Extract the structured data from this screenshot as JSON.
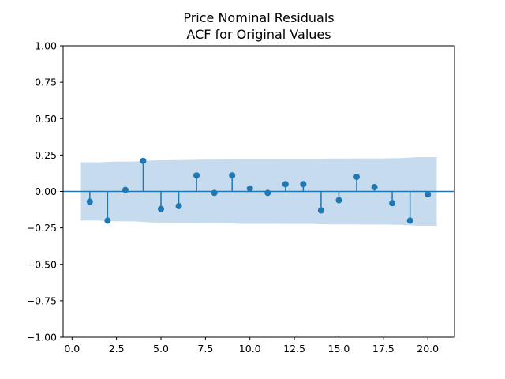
{
  "chart_data": {
    "type": "stem",
    "title_line1": "Price Nominal Residuals",
    "title_line2": "ACF for Original Values",
    "xlabel": "",
    "ylabel": "",
    "xlim": [
      -0.5,
      21.5
    ],
    "ylim": [
      -1.0,
      1.0
    ],
    "x_ticks": [
      0.0,
      2.5,
      5.0,
      7.5,
      10.0,
      12.5,
      15.0,
      17.5,
      20.0
    ],
    "x_tick_labels": [
      "0.0",
      "2.5",
      "5.0",
      "7.5",
      "10.0",
      "12.5",
      "15.0",
      "17.5",
      "20.0"
    ],
    "y_ticks": [
      1.0,
      0.75,
      0.5,
      0.25,
      0.0,
      -0.25,
      -0.5,
      -0.75,
      -1.0
    ],
    "y_tick_labels": [
      "1.00",
      "0.75",
      "0.50",
      "0.25",
      "0.00",
      "−0.25",
      "−0.50",
      "−0.75",
      "−1.00"
    ],
    "lags": [
      1,
      2,
      3,
      4,
      5,
      6,
      7,
      8,
      9,
      10,
      11,
      12,
      13,
      14,
      15,
      16,
      17,
      18,
      19,
      20
    ],
    "values": [
      -0.07,
      -0.2,
      0.01,
      0.21,
      -0.12,
      -0.1,
      0.11,
      -0.01,
      0.11,
      0.02,
      -0.01,
      0.05,
      0.05,
      -0.13,
      -0.06,
      0.1,
      0.03,
      -0.08,
      -0.2,
      -0.02
    ],
    "confidence_band": {
      "x": [
        0.5,
        1.5,
        2.5,
        3.5,
        4.5,
        5.5,
        6.5,
        7.5,
        8.5,
        9.5,
        10.5,
        11.5,
        12.5,
        13.5,
        14.5,
        15.5,
        16.5,
        17.5,
        18.5,
        19.5,
        20.5
      ],
      "upper": [
        0.2,
        0.2,
        0.205,
        0.205,
        0.213,
        0.215,
        0.216,
        0.219,
        0.219,
        0.222,
        0.222,
        0.222,
        0.223,
        0.223,
        0.226,
        0.226,
        0.227,
        0.227,
        0.229,
        0.236,
        0.236
      ],
      "lower": [
        -0.2,
        -0.2,
        -0.205,
        -0.205,
        -0.213,
        -0.215,
        -0.216,
        -0.219,
        -0.219,
        -0.222,
        -0.222,
        -0.222,
        -0.223,
        -0.223,
        -0.226,
        -0.226,
        -0.227,
        -0.227,
        -0.229,
        -0.236,
        -0.236
      ]
    },
    "colors": {
      "stem": "#1f77b4",
      "band": "#c6dbee",
      "axes": "#000000"
    },
    "grid": false,
    "legend": "none"
  }
}
